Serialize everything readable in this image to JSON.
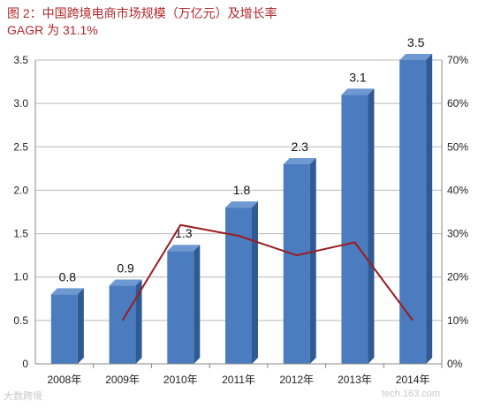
{
  "title_line1": "图 2：中国跨境电商市场规模（万亿元）及增长率",
  "title_line2": "GAGR 为 31.1%",
  "watermark_left": "大数跨境",
  "watermark_right": "tech.163.com",
  "colors": {
    "bar": "#4a7cbf",
    "line": "#9b1b1f",
    "title": "#b0282c"
  },
  "chart_data": {
    "type": "bar",
    "categories": [
      "2008年",
      "2009年",
      "2010年",
      "2011年",
      "2012年",
      "2013年",
      "2014年"
    ],
    "series": [
      {
        "values": [
          0.8,
          0.9,
          1.3,
          1.8,
          2.3,
          3.1,
          3.5
        ],
        "axis": "left",
        "kind": "bar"
      },
      {
        "values": [
          null,
          10,
          32,
          29.5,
          25,
          28,
          10
        ],
        "axis": "right",
        "kind": "line"
      }
    ],
    "data_labels": [
      "0.8",
      "0.9",
      "1.3",
      "1.8",
      "2.3",
      "3.1",
      "3.5"
    ],
    "y_ticks": [
      "0",
      "0.5",
      "1.0",
      "1.5",
      "2.0",
      "2.5",
      "3.0",
      "3.5"
    ],
    "y2_ticks": [
      "0%",
      "10%",
      "20%",
      "30%",
      "40%",
      "50%",
      "60%",
      "70%"
    ],
    "ylim": [
      0,
      3.5
    ],
    "y2lim": [
      0,
      70
    ],
    "grid": true,
    "legend": "none"
  }
}
